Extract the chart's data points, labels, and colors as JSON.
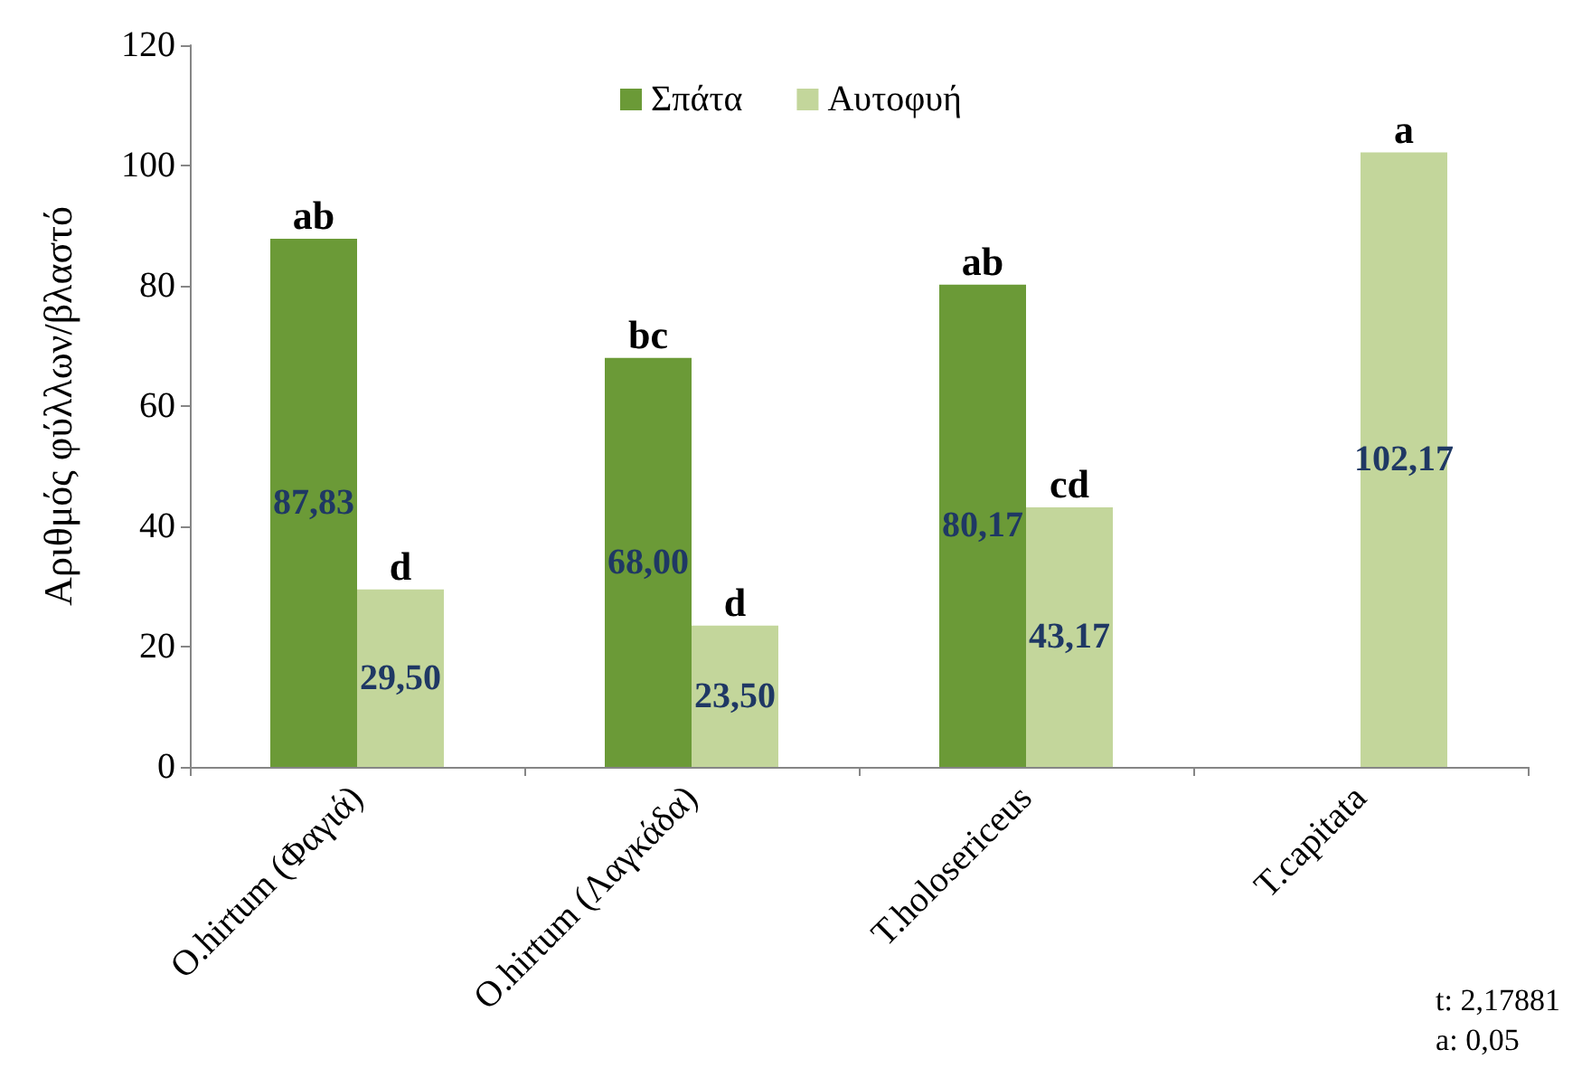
{
  "chart_data": {
    "type": "bar",
    "ylabel": "Αριθμός φύλλων/βλαστό",
    "categories": [
      "O.hirtum (Φαγιά)",
      "O.hirtum (Λαγκάδα)",
      "T.holosericeus",
      "T.capitata"
    ],
    "series": [
      {
        "name": "Σπάτα",
        "color": "#6b9a37",
        "values": [
          87.83,
          68.0,
          80.17,
          null
        ],
        "value_labels": [
          "87,83",
          "68,00",
          "80,17",
          null
        ]
      },
      {
        "name": "Αυτοφυή",
        "color": "#c3d69b",
        "values": [
          29.5,
          23.5,
          43.17,
          102.17
        ],
        "value_labels": [
          "29,50",
          "23,50",
          "43,17",
          "102,17"
        ]
      }
    ],
    "ylim": [
      0,
      120
    ],
    "yticks": [
      0,
      20,
      40,
      60,
      80,
      100,
      120
    ],
    "grid": false,
    "legend": "top",
    "annotations": [
      {
        "text": "ab",
        "x": "O.hirtum (Φαγιά)",
        "y": 87.83
      },
      {
        "text": "d",
        "x": "O.hirtum (Φαγιά)",
        "y": 29.5
      },
      {
        "text": "bc",
        "x": "O.hirtum (Λαγκάδα)",
        "y": 68.0
      },
      {
        "text": "d",
        "x": "O.hirtum (Λαγκάδα)",
        "y": 23.5
      },
      {
        "text": "ab",
        "x": "T.holosericeus",
        "y": 80.17
      },
      {
        "text": "cd",
        "x": "T.holosericeus",
        "y": 43.17
      },
      {
        "text": "a",
        "x": "T.capitata",
        "y": 102.17
      },
      "t: 2,17881\na: 0,05"
    ]
  }
}
